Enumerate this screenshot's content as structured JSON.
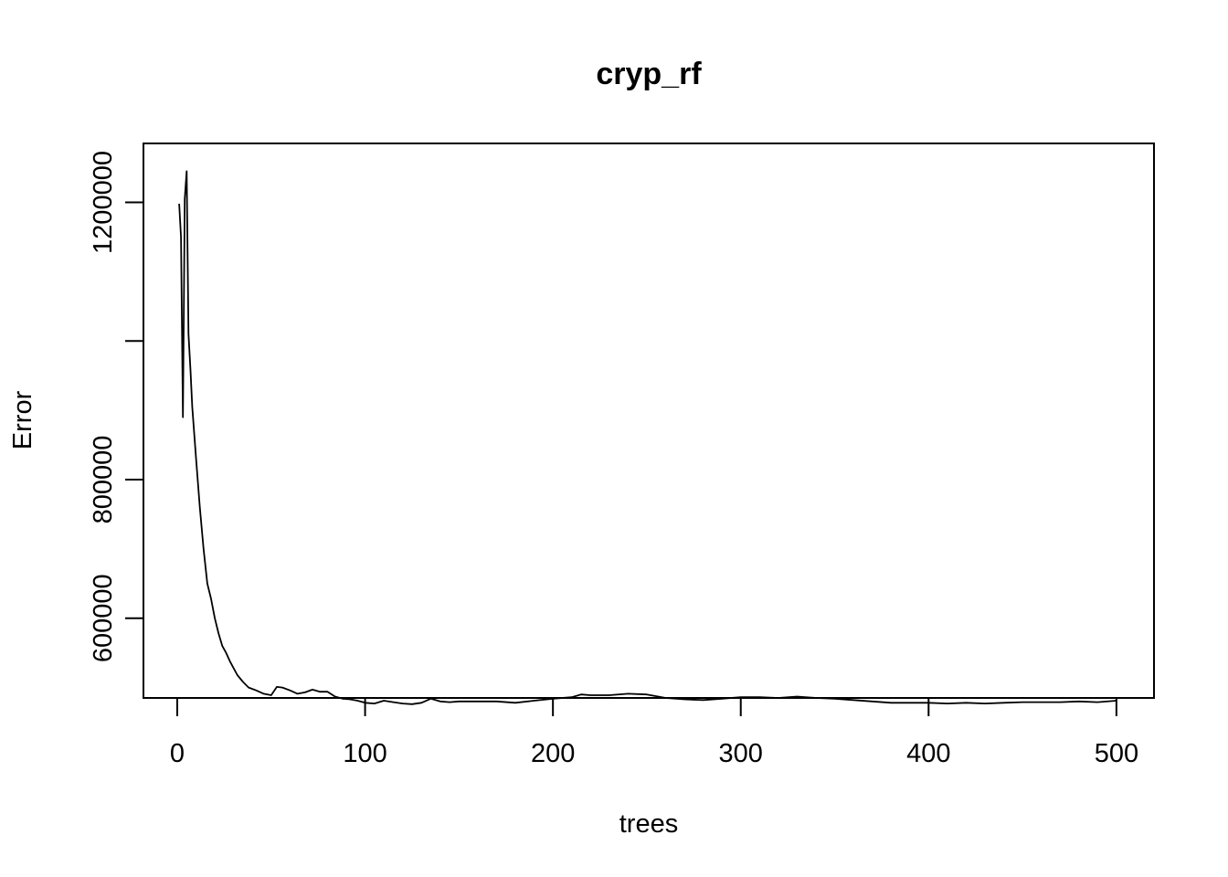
{
  "chart_data": {
    "type": "line",
    "title": "cryp_rf",
    "xlabel": "trees",
    "ylabel": "Error",
    "xlim": [
      -18,
      520
    ],
    "ylim": [
      485000,
      1285000
    ],
    "x_ticks": [
      0,
      100,
      200,
      300,
      400,
      500
    ],
    "x_tick_labels": [
      "0",
      "100",
      "200",
      "300",
      "400",
      "500"
    ],
    "y_ticks": [
      600000,
      800000,
      1000000,
      1200000
    ],
    "y_tick_labels": [
      "600000",
      "800000",
      "",
      "1200000"
    ],
    "grid": false,
    "line_color": "#000000",
    "series": [
      {
        "x": [
          1,
          2,
          3,
          4,
          5,
          6,
          7,
          8,
          10,
          12,
          14,
          16,
          18,
          20,
          22,
          24,
          26,
          28,
          30,
          32,
          35,
          38,
          42,
          46,
          50,
          53,
          56,
          60,
          64,
          68,
          72,
          76,
          80,
          84,
          88,
          92,
          96,
          100,
          105,
          110,
          115,
          120,
          125,
          130,
          135,
          140,
          145,
          150,
          160,
          170,
          180,
          190,
          200,
          210,
          215,
          220,
          230,
          240,
          250,
          260,
          270,
          280,
          290,
          300,
          310,
          320,
          330,
          340,
          350,
          360,
          370,
          380,
          390,
          400,
          410,
          420,
          430,
          440,
          450,
          460,
          470,
          480,
          490,
          500
        ],
        "y": [
          1198000,
          1150000,
          890000,
          1205000,
          1245000,
          1010000,
          960000,
          905000,
          830000,
          760000,
          700000,
          650000,
          628000,
          600000,
          578000,
          560000,
          550000,
          538000,
          528000,
          518000,
          508000,
          500000,
          496000,
          491000,
          489000,
          501000,
          500000,
          496000,
          491000,
          493000,
          497000,
          494000,
          494000,
          487000,
          484000,
          483000,
          481000,
          478000,
          477000,
          481000,
          479000,
          477000,
          476000,
          478000,
          484000,
          480000,
          479000,
          480000,
          480000,
          480000,
          478000,
          481000,
          484000,
          486000,
          490000,
          489000,
          489000,
          491000,
          490000,
          485000,
          483000,
          482000,
          484000,
          486000,
          486000,
          485000,
          487000,
          485000,
          484000,
          482000,
          480000,
          478000,
          478000,
          478000,
          477000,
          478000,
          477000,
          478000,
          479000,
          479000,
          479000,
          480000,
          479000,
          481000
        ]
      }
    ]
  }
}
